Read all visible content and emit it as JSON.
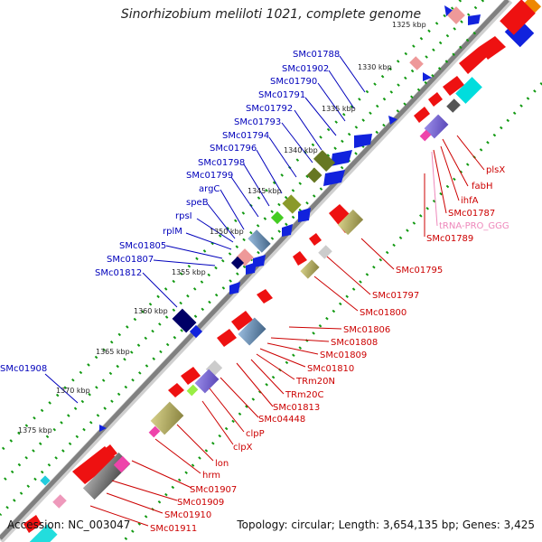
{
  "title": "Sinorhizobium meliloti 1021, complete genome",
  "accession": "Accession: NC_003047",
  "topology": "Topology: circular; Length: 3,654,135 bp; Genes: 3,425",
  "colors": {
    "backbone": "#808080",
    "forward_gene": "#ee1111",
    "reverse_gene": "#1122dd",
    "tick": "#119911",
    "forward_label": "#cc0000",
    "reverse_label": "#0000bb",
    "trna_label": "#ee88bb"
  },
  "ticks": [
    "1325 kbp",
    "1330 kbp",
    "1335 kbp",
    "1340 kbp",
    "1345 kbp",
    "1350 kbp",
    "1355 kbp",
    "1360 kbp",
    "1365 kbp",
    "1370 kbp",
    "1375 kbp"
  ],
  "reverse_labels": [
    "SMc01788",
    "SMc01902",
    "SMc01790",
    "SMc01791",
    "SMc01792",
    "SMc01793",
    "SMc01794",
    "SMc01796",
    "SMc01798",
    "SMc01799",
    "argC",
    "speB",
    "rpsI",
    "rplM",
    "SMc01805",
    "SMc01807",
    "SMc01812",
    "SMc01908"
  ],
  "forward_labels": [
    "plsX",
    "fabH",
    "ihfA",
    "SMc01787",
    "tRNA-PRO_GGG",
    "SMc01789",
    "SMc01795",
    "SMc01797",
    "SMc01800",
    "SMc01806",
    "SMc01808",
    "SMc01809",
    "SMc01810",
    "TRm20N",
    "TRm20C",
    "SMc01813",
    "SMc04448",
    "clpP",
    "clpX",
    "lon",
    "hrm",
    "SMc01907",
    "SMc01909",
    "SMc01910",
    "SMc01911"
  ]
}
